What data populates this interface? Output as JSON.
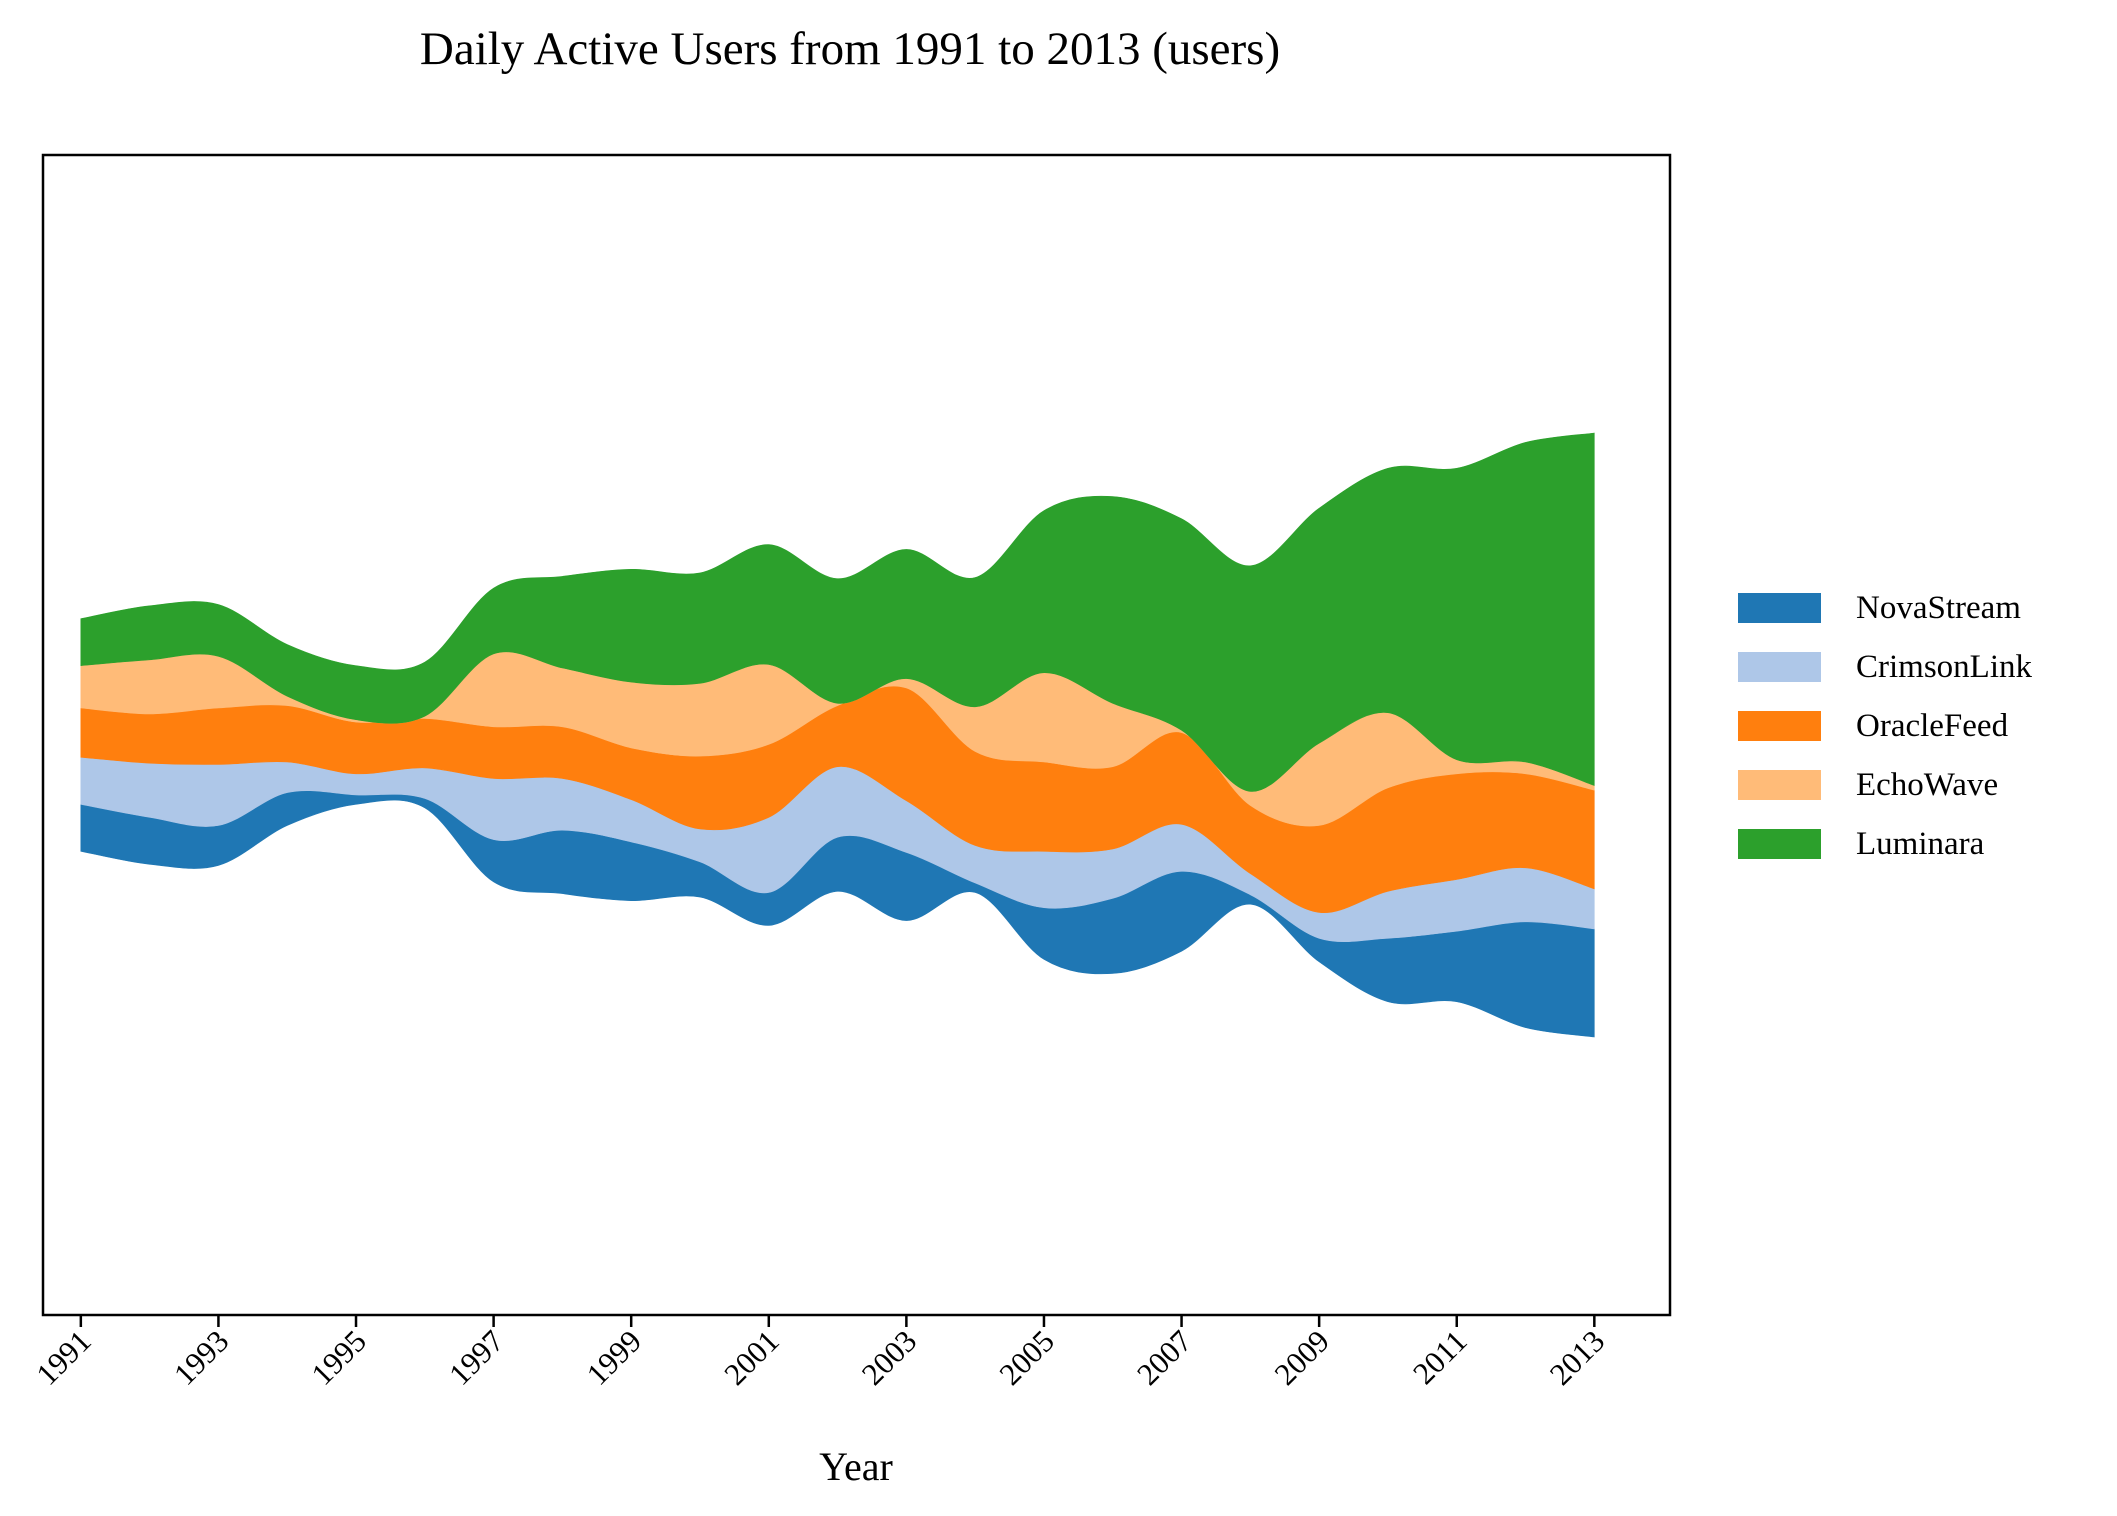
{
  "chart_data": {
    "type": "area",
    "title": "Daily Active Users from 1991 to 2013 (users)",
    "xlabel": "Year",
    "ylabel": "",
    "x": [
      1991,
      1992,
      1993,
      1994,
      1995,
      1996,
      1997,
      1998,
      1999,
      2000,
      2001,
      2002,
      2003,
      2004,
      2005,
      2006,
      2007,
      2008,
      2009,
      2010,
      2011,
      2012,
      2013
    ],
    "x_ticks": [
      "1991",
      "1993",
      "1995",
      "1997",
      "1999",
      "2001",
      "2003",
      "2005",
      "2007",
      "2009",
      "2011",
      "2013"
    ],
    "xlim": [
      1990.45,
      2014.1
    ],
    "yaxis_visible": false,
    "layout": "streamgraph",
    "legend_position": "right",
    "series": [
      {
        "name": "NovaStream",
        "color": "#1f77b4",
        "values": [
          200,
          200,
          170,
          140,
          40,
          40,
          180,
          270,
          250,
          150,
          140,
          230,
          290,
          40,
          220,
          320,
          340,
          40,
          100,
          270,
          300,
          450,
          460
        ]
      },
      {
        "name": "CrimsonLink",
        "color": "#aec7e8",
        "values": [
          200,
          230,
          260,
          130,
          90,
          130,
          260,
          220,
          180,
          140,
          320,
          300,
          220,
          160,
          240,
          210,
          200,
          90,
          110,
          200,
          220,
          230,
          170
        ]
      },
      {
        "name": "OracleFeed",
        "color": "#ff7f0e",
        "values": [
          210,
          210,
          240,
          240,
          220,
          210,
          220,
          220,
          220,
          310,
          310,
          260,
          480,
          400,
          380,
          350,
          390,
          290,
          370,
          440,
          450,
          400,
          420
        ]
      },
      {
        "name": "EchoWave",
        "color": "#ffbb78",
        "values": [
          180,
          230,
          220,
          40,
          10,
          10,
          310,
          250,
          280,
          310,
          340,
          10,
          40,
          190,
          380,
          270,
          10,
          60,
          350,
          320,
          60,
          50,
          20
        ]
      },
      {
        "name": "Luminara",
        "color": "#2ca02c",
        "values": [
          200,
          230,
          220,
          220,
          230,
          230,
          280,
          390,
          480,
          470,
          510,
          530,
          550,
          550,
          690,
          880,
          900,
          960,
          1000,
          1040,
          1240,
          1360,
          1500
        ]
      }
    ]
  }
}
